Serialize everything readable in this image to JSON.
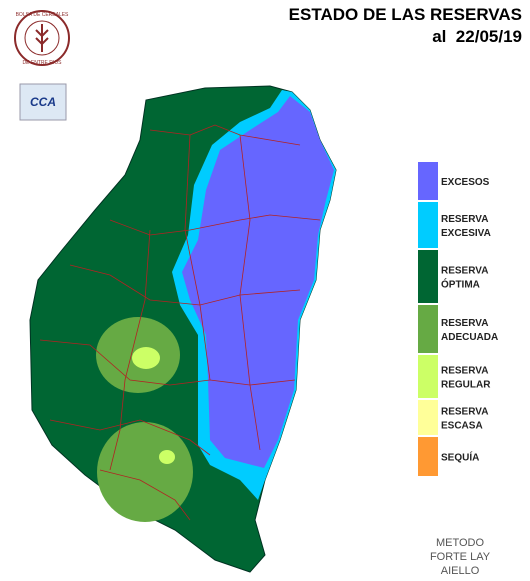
{
  "header": {
    "title": "ESTADO DE LAS RESERVAS",
    "date_line": "al  22/05/19"
  },
  "logo": {
    "text_top": "BOLSA DE CEREALES",
    "text_bottom": "DE ENTRE RIOS",
    "badge": "CCA"
  },
  "legend": {
    "items": [
      {
        "label": [
          "EXCESOS"
        ],
        "color": "#6666ff"
      },
      {
        "label": [
          "RESERVA",
          "EXCESIVA"
        ],
        "color": "#00ccff"
      },
      {
        "label": [
          "RESERVA",
          "ÓPTIMA"
        ],
        "color": "#006633"
      },
      {
        "label": [
          "RESERVA",
          "ADECUADA"
        ],
        "color": "#66aa44"
      },
      {
        "label": [
          "RESERVA",
          "REGULAR"
        ],
        "color": "#ccff66"
      },
      {
        "label": [
          "RESERVA",
          "ESCASA"
        ],
        "color": "#ffff99"
      },
      {
        "label": [
          "SEQUÍA"
        ],
        "color": "#ff9933"
      }
    ]
  },
  "footer": {
    "method": [
      "METODO",
      "FORTE LAY",
      "AIELLO"
    ]
  }
}
